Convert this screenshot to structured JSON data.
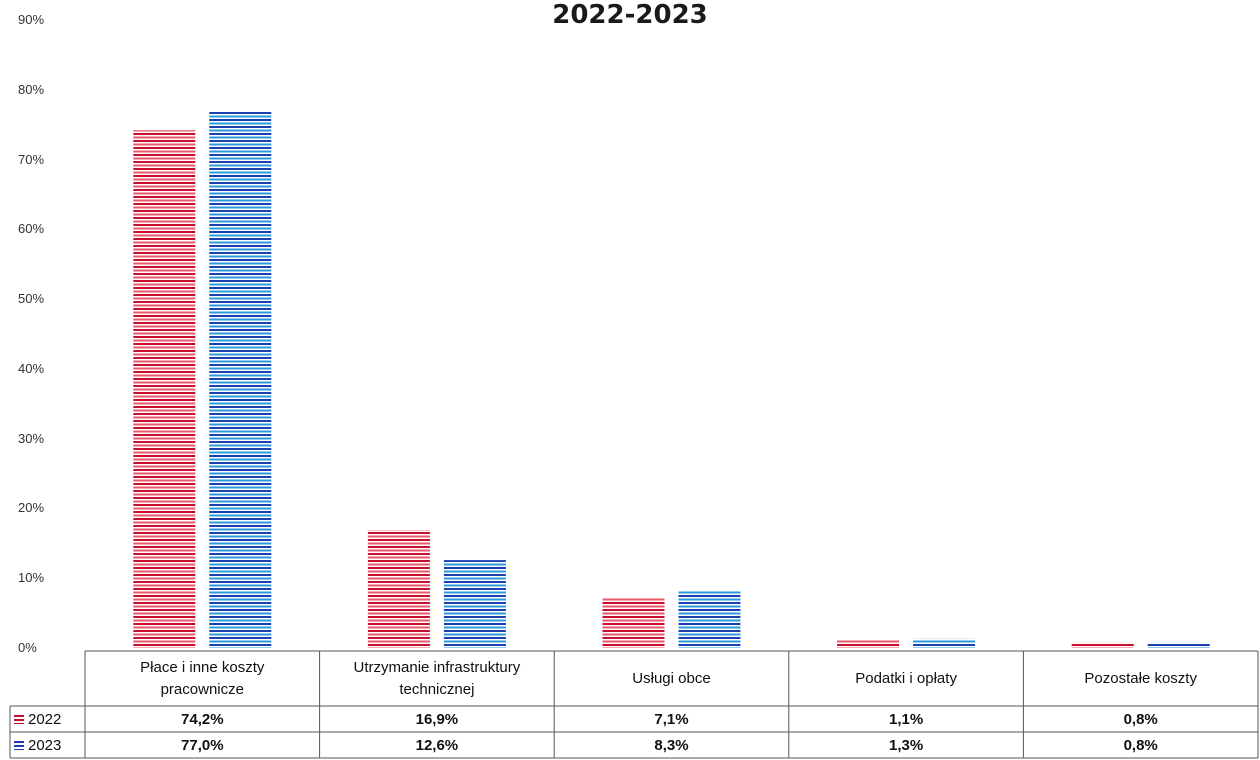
{
  "chart_data": {
    "type": "bar",
    "title": "2022-2023",
    "categories": [
      "Płace i inne koszty pracownicze",
      "Utrzymanie infrastruktury technicznej",
      "Usługi obce",
      "Podatki i opłaty",
      "Pozostałe koszty"
    ],
    "category_lines": [
      [
        "Płace i inne koszty",
        "pracownicze"
      ],
      [
        "Utrzymanie infrastruktury",
        "technicznej"
      ],
      [
        "Usługi obce"
      ],
      [
        "Podatki i opłaty"
      ],
      [
        "Pozostałe koszty"
      ]
    ],
    "series": [
      {
        "name": "2022",
        "values": [
          74.2,
          16.9,
          7.1,
          1.1,
          0.8
        ],
        "labels": [
          "74,2%",
          "16,9%",
          "7,1%",
          "1,1%",
          "0,8%"
        ],
        "color": "#c8102e",
        "color2": "#e85a6a"
      },
      {
        "name": "2023",
        "values": [
          77.0,
          12.6,
          8.3,
          1.3,
          0.8
        ],
        "labels": [
          "77,0%",
          "12,6%",
          "8,3%",
          "1,3%",
          "0,8%"
        ],
        "color": "#1a3fb0",
        "color2": "#2a9ad8"
      }
    ],
    "y_ticks": [
      "0%",
      "10%",
      "20%",
      "30%",
      "40%",
      "50%",
      "60%",
      "70%",
      "80%",
      "90%"
    ],
    "ylim": [
      0,
      90
    ],
    "grid": false,
    "legend": "data-table"
  }
}
